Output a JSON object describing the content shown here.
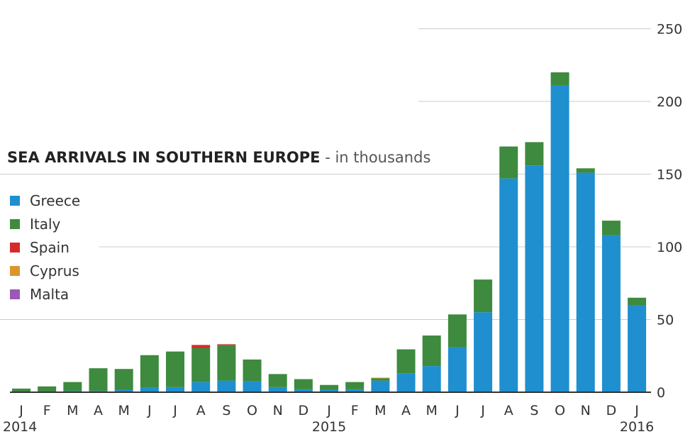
{
  "chart_data": {
    "type": "bar",
    "stacked": true,
    "title": "SEA ARRIVALS IN SOUTHERN EUROPE",
    "subtitle": "- in thousands",
    "categories": [
      "J",
      "F",
      "M",
      "A",
      "M",
      "J",
      "J",
      "A",
      "S",
      "O",
      "N",
      "D",
      "J",
      "F",
      "M",
      "A",
      "M",
      "J",
      "J",
      "A",
      "S",
      "O",
      "N",
      "D",
      "J"
    ],
    "year_labels": [
      {
        "index": 0,
        "label": "2014"
      },
      {
        "index": 12,
        "label": "2015"
      },
      {
        "index": 24,
        "label": "2016"
      }
    ],
    "series": [
      {
        "name": "Greece",
        "color": "#1f8fd0",
        "values": [
          0.5,
          0.5,
          1,
          1,
          1.5,
          3,
          3.5,
          7,
          8,
          7.5,
          3.5,
          2,
          1.5,
          2,
          8,
          13,
          18,
          31,
          55,
          147,
          156,
          211,
          151,
          108,
          60
        ]
      },
      {
        "name": "Italy",
        "color": "#3e8a3e",
        "values": [
          2,
          3.5,
          6,
          15.5,
          14.5,
          22.5,
          24.5,
          23.5,
          24.5,
          15,
          9,
          7,
          3.5,
          5,
          1.5,
          16.5,
          21,
          22.5,
          22.5,
          22,
          16,
          9,
          3,
          10,
          5
        ]
      },
      {
        "name": "Spain",
        "color": "#d62a2a",
        "values": [
          0,
          0,
          0,
          0,
          0,
          0,
          0,
          2,
          0.5,
          0,
          0,
          0,
          0,
          0,
          0,
          0,
          0,
          0,
          0,
          0,
          0,
          0,
          0,
          0,
          0
        ]
      },
      {
        "name": "Cyprus",
        "color": "#d9962b",
        "values": [
          0,
          0,
          0,
          0,
          0,
          0,
          0,
          0,
          0,
          0,
          0,
          0,
          0,
          0,
          0.5,
          0,
          0,
          0,
          0,
          0,
          0,
          0,
          0,
          0,
          0
        ]
      },
      {
        "name": "Malta",
        "color": "#9b59b6",
        "values": [
          0,
          0,
          0,
          0,
          0,
          0,
          0,
          0,
          0,
          0,
          0,
          0,
          0,
          0,
          0,
          0,
          0,
          0,
          0,
          0,
          0,
          0,
          0,
          0,
          0
        ]
      }
    ],
    "yticks": [
      0,
      50,
      100,
      150,
      200,
      250
    ],
    "ylim": [
      0,
      250
    ],
    "y_axis_position": "right",
    "grid": true,
    "legend_position": "left"
  }
}
